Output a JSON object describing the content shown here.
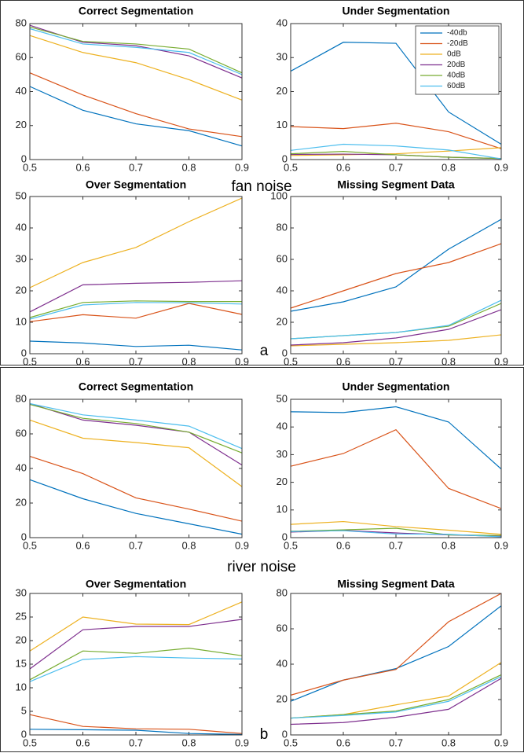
{
  "chart_data": [
    {
      "type": "line",
      "title": "Correct Segmentation",
      "x": [
        0.5,
        0.6,
        0.7,
        0.8,
        0.9
      ],
      "xlim": [
        0.5,
        0.9
      ],
      "xticks": [
        0.5,
        0.6,
        0.7,
        0.8,
        0.9
      ],
      "ylim": [
        0,
        80
      ],
      "yticks": [
        0,
        20,
        40,
        60,
        80
      ],
      "series": [
        {
          "color": "#0072bd",
          "values": [
            43,
            29,
            21,
            17,
            8
          ]
        },
        {
          "color": "#d95319",
          "values": [
            51,
            38,
            27,
            18,
            13.5
          ]
        },
        {
          "color": "#edb120",
          "values": [
            73,
            63,
            57,
            47,
            35
          ]
        },
        {
          "color": "#7e2f8e",
          "values": [
            79,
            69,
            67,
            61,
            48
          ]
        },
        {
          "color": "#77ac30",
          "values": [
            78,
            69.5,
            68,
            65,
            51
          ]
        },
        {
          "color": "#4dbeee",
          "values": [
            77,
            68,
            66,
            63,
            50
          ]
        }
      ]
    },
    {
      "type": "line",
      "title": "Under Segmentation",
      "x": [
        0.5,
        0.6,
        0.7,
        0.8,
        0.9
      ],
      "xlim": [
        0.5,
        0.9
      ],
      "xticks": [
        0.5,
        0.6,
        0.7,
        0.8,
        0.9
      ],
      "ylim": [
        0,
        40
      ],
      "yticks": [
        0,
        10,
        20,
        30,
        40
      ],
      "legend": "upper right",
      "series": [
        {
          "name": "-40db",
          "color": "#0072bd",
          "values": [
            26,
            34.5,
            34.2,
            14,
            4.5
          ]
        },
        {
          "name": "-20dB",
          "color": "#d95319",
          "values": [
            9.7,
            9.1,
            10.7,
            8.2,
            3.2
          ]
        },
        {
          "name": "0dB",
          "color": "#edb120",
          "values": [
            1.2,
            1.4,
            1.7,
            2.5,
            3.5
          ]
        },
        {
          "name": "20dB",
          "color": "#7e2f8e",
          "values": [
            1.5,
            1.6,
            1.4,
            0.7,
            0.3
          ]
        },
        {
          "name": "40dB",
          "color": "#77ac30",
          "values": [
            1.7,
            2.4,
            1.4,
            0.7,
            0.3
          ]
        },
        {
          "name": "60dB",
          "color": "#4dbeee",
          "values": [
            2.7,
            4.5,
            4,
            2.8,
            0.2
          ]
        }
      ]
    },
    {
      "type": "line",
      "title": "Over Segmentation",
      "x": [
        0.5,
        0.6,
        0.7,
        0.8,
        0.9
      ],
      "xlim": [
        0.5,
        0.9
      ],
      "xticks": [
        0.5,
        0.6,
        0.7,
        0.8,
        0.9
      ],
      "ylim": [
        0,
        50
      ],
      "yticks": [
        0,
        10,
        20,
        30,
        40,
        50
      ],
      "series": [
        {
          "color": "#0072bd",
          "values": [
            4,
            3.4,
            2.3,
            2.7,
            1.2
          ]
        },
        {
          "color": "#d95319",
          "values": [
            10.2,
            12.4,
            11.3,
            16,
            12.5
          ]
        },
        {
          "color": "#edb120",
          "values": [
            21,
            29,
            33.8,
            42,
            49.5
          ]
        },
        {
          "color": "#7e2f8e",
          "values": [
            13.3,
            21.9,
            22.4,
            22.7,
            23.2
          ]
        },
        {
          "color": "#77ac30",
          "values": [
            11.5,
            16.3,
            16.8,
            16.6,
            16.6
          ]
        },
        {
          "color": "#4dbeee",
          "values": [
            11,
            15.5,
            16.3,
            16.2,
            15.8
          ]
        }
      ]
    },
    {
      "type": "line",
      "title": "Missing Segment Data",
      "x": [
        0.5,
        0.6,
        0.7,
        0.8,
        0.9
      ],
      "xlim": [
        0.5,
        0.9
      ],
      "xticks": [
        0.5,
        0.6,
        0.7,
        0.8,
        0.9
      ],
      "ylim": [
        0,
        100
      ],
      "yticks": [
        0,
        20,
        40,
        60,
        80,
        100
      ],
      "series": [
        {
          "color": "#0072bd",
          "values": [
            27,
            33,
            42.5,
            66.5,
            85.5
          ]
        },
        {
          "color": "#d95319",
          "values": [
            29,
            40,
            51,
            58,
            70
          ]
        },
        {
          "color": "#edb120",
          "values": [
            5,
            6,
            7,
            8.5,
            12
          ]
        },
        {
          "color": "#7e2f8e",
          "values": [
            5.5,
            7,
            10,
            15.5,
            28
          ]
        },
        {
          "color": "#77ac30",
          "values": [
            9.5,
            11.5,
            13.5,
            17.5,
            32
          ]
        },
        {
          "color": "#4dbeee",
          "values": [
            9.5,
            11.5,
            13.5,
            18,
            34
          ]
        }
      ]
    },
    {
      "type": "line",
      "title": "Correct Segmentation",
      "x": [
        0.5,
        0.6,
        0.7,
        0.8,
        0.9
      ],
      "xlim": [
        0.5,
        0.9
      ],
      "xticks": [
        0.5,
        0.6,
        0.7,
        0.8,
        0.9
      ],
      "ylim": [
        0,
        80
      ],
      "yticks": [
        0,
        20,
        40,
        60,
        80
      ],
      "series": [
        {
          "color": "#0072bd",
          "values": [
            33.5,
            22.5,
            14,
            8,
            2
          ]
        },
        {
          "color": "#d95319",
          "values": [
            47,
            37,
            23,
            16.5,
            9.5
          ]
        },
        {
          "color": "#edb120",
          "values": [
            68,
            57.5,
            55,
            52,
            29.5
          ]
        },
        {
          "color": "#7e2f8e",
          "values": [
            77.5,
            68,
            65,
            61,
            42
          ]
        },
        {
          "color": "#77ac30",
          "values": [
            77,
            69,
            66,
            61,
            49
          ]
        },
        {
          "color": "#4dbeee",
          "values": [
            77.5,
            71,
            68,
            64.5,
            51.5
          ]
        }
      ]
    },
    {
      "type": "line",
      "title": "Under Segmentation",
      "x": [
        0.5,
        0.6,
        0.7,
        0.8,
        0.9
      ],
      "xlim": [
        0.5,
        0.9
      ],
      "xticks": [
        0.5,
        0.6,
        0.7,
        0.8,
        0.9
      ],
      "ylim": [
        0,
        50
      ],
      "yticks": [
        0,
        10,
        20,
        30,
        40,
        50
      ],
      "series": [
        {
          "color": "#0072bd",
          "values": [
            45.5,
            45.2,
            47.3,
            41.8,
            24.8
          ]
        },
        {
          "color": "#d95319",
          "values": [
            25.8,
            30.4,
            39,
            17.8,
            10.5
          ]
        },
        {
          "color": "#edb120",
          "values": [
            4.8,
            5.8,
            4,
            2.7,
            1.2
          ]
        },
        {
          "color": "#7e2f8e",
          "values": [
            2,
            2.6,
            1.7,
            1,
            0.5
          ]
        },
        {
          "color": "#77ac30",
          "values": [
            2.3,
            2.8,
            3.4,
            1,
            0.8
          ]
        },
        {
          "color": "#4dbeee",
          "values": [
            2.2,
            2.5,
            1.3,
            1.2,
            0.3
          ]
        }
      ]
    },
    {
      "type": "line",
      "title": "Over Segmentation",
      "x": [
        0.5,
        0.6,
        0.7,
        0.8,
        0.9
      ],
      "xlim": [
        0.5,
        0.9
      ],
      "xticks": [
        0.5,
        0.6,
        0.7,
        0.8,
        0.9
      ],
      "ylim": [
        0,
        30
      ],
      "yticks": [
        0,
        5,
        10,
        15,
        20,
        25,
        30
      ],
      "series": [
        {
          "color": "#0072bd",
          "values": [
            1.2,
            1.1,
            1,
            0.3,
            0.1
          ]
        },
        {
          "color": "#d95319",
          "values": [
            4.3,
            1.8,
            1.3,
            1.2,
            0.3
          ]
        },
        {
          "color": "#edb120",
          "values": [
            17.8,
            25,
            23.5,
            23.4,
            28.2
          ]
        },
        {
          "color": "#7e2f8e",
          "values": [
            14,
            22.3,
            23,
            23,
            24.5
          ]
        },
        {
          "color": "#77ac30",
          "values": [
            11.7,
            17.8,
            17.3,
            18.4,
            16.8
          ]
        },
        {
          "color": "#4dbeee",
          "values": [
            11.3,
            16,
            16.6,
            16.3,
            16.1
          ]
        }
      ]
    },
    {
      "type": "line",
      "title": "Missing Segment Data",
      "x": [
        0.5,
        0.6,
        0.7,
        0.8,
        0.9
      ],
      "xlim": [
        0.5,
        0.9
      ],
      "xticks": [
        0.5,
        0.6,
        0.7,
        0.8,
        0.9
      ],
      "ylim": [
        0,
        80
      ],
      "yticks": [
        0,
        20,
        40,
        60,
        80
      ],
      "series": [
        {
          "color": "#0072bd",
          "values": [
            19,
            31,
            37.5,
            50,
            73
          ]
        },
        {
          "color": "#d95319",
          "values": [
            22.5,
            31,
            37,
            64,
            80
          ]
        },
        {
          "color": "#edb120",
          "values": [
            9.5,
            11.5,
            17,
            22,
            41
          ]
        },
        {
          "color": "#7e2f8e",
          "values": [
            6,
            7,
            10,
            14.5,
            32
          ]
        },
        {
          "color": "#77ac30",
          "values": [
            9.5,
            11.5,
            13.5,
            20,
            34
          ]
        },
        {
          "color": "#4dbeee",
          "values": [
            9.5,
            11,
            13,
            19,
            33
          ]
        }
      ]
    }
  ],
  "annotations": [
    "fan noise",
    "a",
    "river noise",
    "b"
  ]
}
